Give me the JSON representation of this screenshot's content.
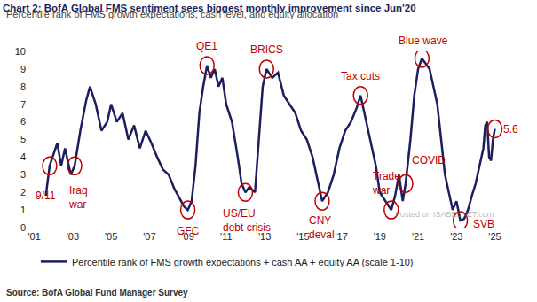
{
  "chart_data": {
    "type": "line",
    "title": "Chart 2: BofA Global FMS sentiment sees biggest monthly improvement since Jun'20",
    "subtitle": "Percentile rank of FMS growth expectations, cash level, and equity allocation",
    "source": "Source: BofA Global Fund Manager Survey",
    "watermark": "Posted on ISABELNET.com",
    "legend": "bottom",
    "grid": false,
    "xlim": [
      2000.6,
      2025.9
    ],
    "xticks": [
      {
        "value": 2001,
        "label": "'01"
      },
      {
        "value": 2003,
        "label": "'03"
      },
      {
        "value": 2005,
        "label": "'05"
      },
      {
        "value": 2007,
        "label": "'07"
      },
      {
        "value": 2009,
        "label": "'09"
      },
      {
        "value": 2011,
        "label": "'11"
      },
      {
        "value": 2013,
        "label": "'13"
      },
      {
        "value": 2015,
        "label": "'15"
      },
      {
        "value": 2017,
        "label": "'17"
      },
      {
        "value": 2019,
        "label": "'19"
      },
      {
        "value": 2021,
        "label": "'21"
      },
      {
        "value": 2023,
        "label": "'23"
      },
      {
        "value": 2025,
        "label": "'25"
      }
    ],
    "ylim": [
      0,
      10
    ],
    "yticks": [
      0,
      1,
      2,
      3,
      4,
      5,
      6,
      7,
      8,
      9,
      10
    ],
    "x": [
      2001.6,
      2001.8,
      2001.95,
      2002.2,
      2002.4,
      2002.6,
      2002.9,
      2003.1,
      2003.4,
      2003.7,
      2003.9,
      2004.2,
      2004.5,
      2004.8,
      2005.0,
      2005.3,
      2005.6,
      2005.9,
      2006.2,
      2006.5,
      2006.8,
      2007.1,
      2007.4,
      2007.7,
      2008.0,
      2008.3,
      2008.6,
      2008.8,
      2009.0,
      2009.2,
      2009.4,
      2009.6,
      2009.8,
      2010.0,
      2010.2,
      2010.4,
      2010.6,
      2010.8,
      2011.0,
      2011.3,
      2011.6,
      2011.8,
      2012.0,
      2012.2,
      2012.5,
      2012.7,
      2012.9,
      2013.1,
      2013.4,
      2013.7,
      2014.0,
      2014.3,
      2014.6,
      2014.9,
      2015.2,
      2015.5,
      2015.8,
      2016.0,
      2016.3,
      2016.6,
      2016.9,
      2017.2,
      2017.5,
      2017.8,
      2018.0,
      2018.2,
      2018.5,
      2018.8,
      2019.0,
      2019.3,
      2019.6,
      2019.8,
      2020.0,
      2020.2,
      2020.35,
      2020.6,
      2020.8,
      2021.0,
      2021.2,
      2021.4,
      2021.6,
      2021.8,
      2022.0,
      2022.2,
      2022.4,
      2022.6,
      2022.8,
      2023.0,
      2023.2,
      2023.4,
      2023.6,
      2023.8,
      2024.0,
      2024.2,
      2024.4,
      2024.5,
      2024.6,
      2024.7,
      2024.8,
      2024.9,
      2025.0
    ],
    "series": [
      {
        "name": "Percentile rank of FMS growth expectations + cash AA + equity AA (scale 1-10)",
        "color": "#1b1f5e",
        "line_style": "solid",
        "values": [
          1.8,
          3.5,
          4.0,
          4.8,
          3.5,
          4.5,
          3.0,
          3.5,
          5.5,
          7.2,
          8.0,
          7.0,
          5.5,
          6.0,
          7.0,
          6.0,
          6.5,
          5.0,
          5.8,
          4.5,
          5.5,
          4.8,
          4.0,
          3.3,
          3.0,
          2.2,
          1.6,
          1.2,
          1.0,
          1.5,
          3.5,
          6.5,
          8.0,
          9.2,
          8.5,
          9.0,
          8.0,
          8.5,
          7.0,
          6.0,
          4.0,
          2.5,
          2.0,
          2.3,
          2.0,
          5.0,
          8.0,
          9.0,
          8.5,
          8.8,
          7.5,
          7.0,
          6.5,
          5.5,
          5.0,
          4.0,
          2.5,
          1.5,
          2.0,
          3.0,
          4.5,
          5.5,
          6.0,
          6.8,
          7.5,
          6.5,
          5.0,
          3.5,
          2.0,
          1.5,
          1.0,
          1.8,
          3.0,
          1.5,
          2.5,
          5.0,
          7.5,
          9.0,
          9.6,
          9.3,
          9.0,
          8.0,
          7.0,
          5.0,
          3.0,
          2.0,
          1.0,
          1.5,
          0.4,
          0.5,
          1.0,
          1.8,
          2.5,
          3.5,
          4.5,
          5.8,
          6.0,
          4.0,
          3.8,
          5.0,
          5.6
        ]
      }
    ],
    "annotations": [
      {
        "text": "9/11",
        "x": 2001.8,
        "y": 3.5
      },
      {
        "text": "Iraq war",
        "x": 2003.1,
        "y": 3.5
      },
      {
        "text": "GFC",
        "x": 2009.0,
        "y": 1.0
      },
      {
        "text": "QE1",
        "x": 2010.0,
        "y": 9.2
      },
      {
        "text": "US/EU debt crisis",
        "x": 2012.0,
        "y": 2.0
      },
      {
        "text": "BRICS",
        "x": 2013.1,
        "y": 9.0
      },
      {
        "text": "CNY deval",
        "x": 2016.0,
        "y": 1.5
      },
      {
        "text": "Tax cuts",
        "x": 2018.0,
        "y": 7.5
      },
      {
        "text": "Trade war",
        "x": 2019.6,
        "y": 1.0
      },
      {
        "text": "COVID",
        "x": 2020.35,
        "y": 2.5
      },
      {
        "text": "Blue wave",
        "x": 2021.2,
        "y": 9.6
      },
      {
        "text": "SVB",
        "x": 2023.2,
        "y": 0.4
      },
      {
        "text": "5.6",
        "x": 2025.0,
        "y": 5.6
      }
    ]
  }
}
